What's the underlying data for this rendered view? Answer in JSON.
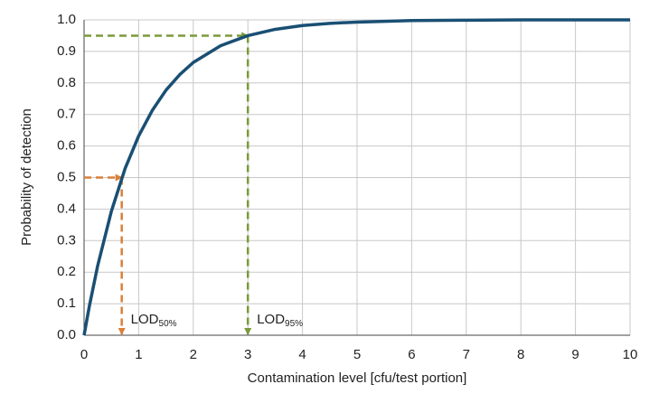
{
  "chart_data": {
    "type": "line",
    "x_label": "Contamination level [cfu/test portion]",
    "y_label": "Probability of detection",
    "x": [
      0,
      0.1,
      0.25,
      0.5,
      0.75,
      1,
      1.25,
      1.5,
      1.75,
      2,
      2.5,
      3,
      3.5,
      4,
      4.5,
      5,
      6,
      7,
      8,
      10
    ],
    "series": [
      {
        "color": "#1a4f74",
        "values": [
          0,
          0.095,
          0.221,
          0.393,
          0.528,
          0.632,
          0.713,
          0.777,
          0.826,
          0.865,
          0.918,
          0.95,
          0.97,
          0.982,
          0.989,
          0.993,
          0.998,
          0.999,
          1.0,
          1.0
        ]
      }
    ],
    "xlim": [
      0,
      10
    ],
    "xticks": [
      0,
      1,
      2,
      3,
      4,
      5,
      6,
      7,
      8,
      9,
      10
    ],
    "ylim": [
      0,
      1
    ],
    "yticks": [
      {
        "value": 0,
        "label": "0.0"
      },
      0.1,
      0.2,
      0.3,
      0.4,
      0.5,
      0.6,
      0.7,
      0.8,
      0.9,
      {
        "value": 1,
        "label": "1.0"
      }
    ],
    "grid": true,
    "annotations": [
      {
        "label": "LOD",
        "subscript": "50%",
        "x": 0.69,
        "y": 0.5,
        "color": "#d9803a"
      },
      {
        "label": "LOD",
        "subscript": "95%",
        "x": 3.0,
        "y": 0.95,
        "color": "#7a9a3a"
      }
    ]
  }
}
